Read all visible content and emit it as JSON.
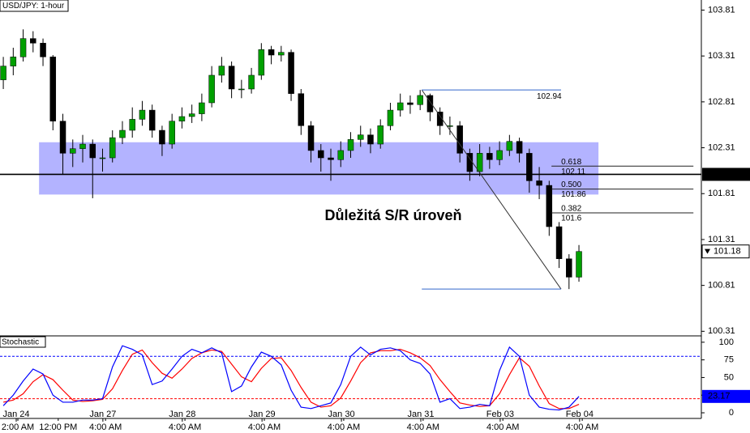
{
  "chart_data": [
    {
      "type": "candlestick",
      "title": "USD/JPY: 1-hour",
      "x": [
        1,
        4,
        7,
        10,
        13,
        16,
        19,
        22,
        25,
        28,
        31,
        34,
        37,
        40,
        43,
        46,
        49,
        52,
        55,
        58,
        61,
        64,
        67,
        70,
        73,
        76,
        79,
        82,
        85,
        88,
        91,
        94,
        97,
        100,
        103,
        106,
        109,
        112,
        115,
        118,
        121,
        124,
        127,
        130,
        133,
        136,
        139,
        142,
        145,
        148,
        151,
        154,
        157,
        160,
        163,
        166,
        169,
        172,
        175
      ],
      "open": [
        103.05,
        103.2,
        103.3,
        103.5,
        103.45,
        103.3,
        102.6,
        102.25,
        102.3,
        102.35,
        102.2,
        102.2,
        102.42,
        102.5,
        102.62,
        102.72,
        102.5,
        102.35,
        102.6,
        102.65,
        102.68,
        102.8,
        103.1,
        103.2,
        102.95,
        102.95,
        103.1,
        103.38,
        103.32,
        103.35,
        102.9,
        102.55,
        102.28,
        102.2,
        102.18,
        102.28,
        102.4,
        102.45,
        102.35,
        102.55,
        102.72,
        102.8,
        102.78,
        102.88,
        102.7,
        102.55,
        102.55,
        102.25,
        102.05,
        102.25,
        102.18,
        102.28,
        102.38,
        102.25,
        101.95,
        101.9,
        101.45,
        101.1,
        100.9
      ],
      "high": [
        103.3,
        103.4,
        103.6,
        103.58,
        103.5,
        103.32,
        102.68,
        102.4,
        102.45,
        102.4,
        102.3,
        102.5,
        102.6,
        102.75,
        102.82,
        102.78,
        102.55,
        102.68,
        102.75,
        102.78,
        102.9,
        103.2,
        103.3,
        103.25,
        103.05,
        103.18,
        103.45,
        103.42,
        103.42,
        103.38,
        102.95,
        102.6,
        102.35,
        102.3,
        102.38,
        102.48,
        102.55,
        102.52,
        102.62,
        102.8,
        102.9,
        102.88,
        102.94,
        102.9,
        102.75,
        102.65,
        102.6,
        102.3,
        102.35,
        102.32,
        102.38,
        102.45,
        102.42,
        102.3,
        102.1,
        101.95,
        101.5,
        101.15,
        101.25
      ],
      "low": [
        102.95,
        103.1,
        103.25,
        103.35,
        103.2,
        102.5,
        102.02,
        102.1,
        102.15,
        101.76,
        102.05,
        102.15,
        102.35,
        102.42,
        102.55,
        102.42,
        102.22,
        102.3,
        102.52,
        102.58,
        102.6,
        102.75,
        103.02,
        102.85,
        102.85,
        102.9,
        103.05,
        103.22,
        103.25,
        102.82,
        102.45,
        102.15,
        102.05,
        101.95,
        102.1,
        102.2,
        102.32,
        102.25,
        102.3,
        102.5,
        102.65,
        102.68,
        102.72,
        102.6,
        102.45,
        102.45,
        102.15,
        101.95,
        102.0,
        102.08,
        102.12,
        102.22,
        102.15,
        101.82,
        101.75,
        101.35,
        101.0,
        100.77,
        100.85
      ],
      "close": [
        103.2,
        103.3,
        103.5,
        103.45,
        103.3,
        102.6,
        102.25,
        102.3,
        102.35,
        102.2,
        102.2,
        102.42,
        102.5,
        102.62,
        102.72,
        102.5,
        102.35,
        102.6,
        102.65,
        102.68,
        102.8,
        103.1,
        103.2,
        102.95,
        102.95,
        103.1,
        103.38,
        103.32,
        103.35,
        102.9,
        102.55,
        102.28,
        102.2,
        102.18,
        102.28,
        102.4,
        102.45,
        102.35,
        102.55,
        102.72,
        102.8,
        102.78,
        102.88,
        102.7,
        102.55,
        102.55,
        102.25,
        102.05,
        102.25,
        102.18,
        102.28,
        102.38,
        102.25,
        101.95,
        101.9,
        101.45,
        101.1,
        100.9,
        101.18
      ],
      "up_color": "#00a000",
      "down_color": "#000000",
      "xlim": [
        0,
        212
      ],
      "ylim": [
        100.26,
        103.92
      ],
      "yticks": [
        103.81,
        103.31,
        102.81,
        102.31,
        101.81,
        101.31,
        100.81,
        100.31
      ],
      "zone": {
        "label": "Důležitá S/R úroveň",
        "from": 101.8,
        "to": 102.37,
        "x": [
          11.8,
          180.9
        ],
        "color": "#9999ff"
      },
      "level": 102.02,
      "fibonacci": {
        "x": [
          127.5,
          169.6
        ],
        "high": 102.94,
        "low": 100.77,
        "color": "#3366cc",
        "level_x": [
          166.7,
          209.6
        ],
        "levels": [
          {
            "ratio": 0.618,
            "price": 102.11
          },
          {
            "ratio": {
              "value": 0.5,
              "label": "0.500"
            },
            "price": 101.86
          },
          {
            "ratio": 0.382,
            "price": 101.6
          }
        ]
      }
    },
    {
      "type": "line",
      "title": "Stochastic",
      "x": [
        1,
        4,
        7,
        10,
        13,
        16,
        19,
        22,
        25,
        28,
        31,
        34,
        37,
        40,
        43,
        46,
        49,
        52,
        55,
        58,
        61,
        64,
        67,
        70,
        73,
        76,
        79,
        82,
        85,
        88,
        91,
        94,
        97,
        100,
        103,
        106,
        109,
        112,
        115,
        118,
        121,
        124,
        127,
        130,
        133,
        136,
        139,
        142,
        145,
        148,
        151,
        154,
        157,
        160,
        163,
        166,
        169,
        172,
        175
      ],
      "series": [
        {
          "color": "#0000ff",
          "values": [
            10,
            25,
            45,
            62,
            55,
            25,
            15,
            15,
            18,
            18,
            20,
            65,
            95,
            90,
            82,
            40,
            45,
            62,
            80,
            90,
            85,
            92,
            85,
            30,
            38,
            65,
            86,
            80,
            68,
            32,
            8,
            6,
            10,
            14,
            40,
            80,
            93,
            82,
            90,
            92,
            88,
            75,
            70,
            55,
            15,
            20,
            6,
            8,
            12,
            10,
            60,
            93,
            80,
            25,
            8,
            5,
            4,
            8,
            23.17
          ]
        },
        {
          "color": "#ff0000",
          "values": [
            15,
            18,
            27,
            44,
            54,
            47,
            32,
            18,
            16,
            17,
            19,
            34,
            60,
            83,
            89,
            71,
            56,
            49,
            62,
            77,
            85,
            89,
            87,
            69,
            51,
            44,
            63,
            77,
            78,
            60,
            36,
            15,
            8,
            10,
            21,
            45,
            71,
            85,
            88,
            88,
            90,
            85,
            78,
            67,
            47,
            30,
            14,
            11,
            9,
            10,
            27,
            54,
            78,
            66,
            38,
            13,
            6,
            6,
            12
          ]
        }
      ],
      "xlim": [
        0,
        212
      ],
      "ylim": [
        -8,
        109
      ],
      "yticks": [
        100,
        75,
        50,
        25,
        0
      ],
      "overbought": 80,
      "oversold": 20,
      "xticks": [
        {
          "value": 4.9,
          "label": "Jan 24"
        },
        {
          "value": 31.1,
          "label": "Jan 27"
        },
        {
          "value": 55.1,
          "label": "Jan 28"
        },
        {
          "value": 79.2,
          "label": "Jan 29"
        },
        {
          "value": 103.2,
          "label": "Jan 30"
        },
        {
          "value": 127.2,
          "label": "Jan 31"
        },
        {
          "value": 151.2,
          "label": "Feb 03"
        },
        {
          "value": 175.2,
          "label": "Feb 04"
        }
      ],
      "time_ticks": [
        {
          "value": 5.4,
          "label": "2:00 AM"
        },
        {
          "value": 17.6,
          "label": "12:00 PM"
        },
        {
          "value": 31.9,
          "label": "4:00 AM"
        },
        {
          "value": 55.9,
          "label": "4:00 AM"
        },
        {
          "value": 79.9,
          "label": "4:00 AM"
        },
        {
          "value": 103.9,
          "label": "4:00 AM"
        },
        {
          "value": 127.9,
          "label": "4:00 AM"
        },
        {
          "value": 152,
          "label": "4:00 AM"
        },
        {
          "value": 176,
          "label": "4:00 AM"
        }
      ]
    }
  ]
}
